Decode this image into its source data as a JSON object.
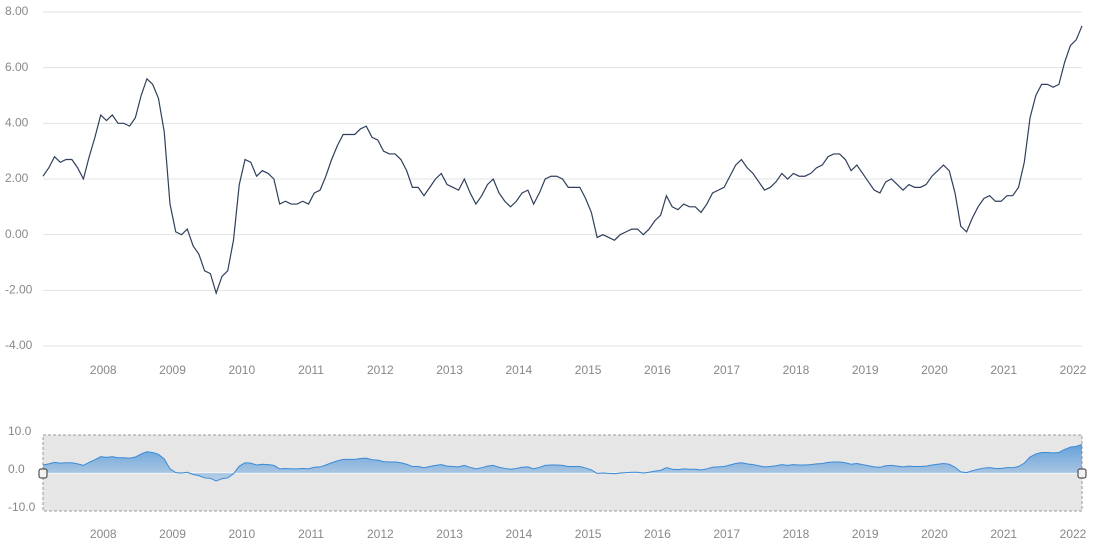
{
  "chart_data": {
    "type": "line",
    "color": "#2f3f5c",
    "categories": [
      null,
      null,
      null,
      null,
      null,
      null,
      null,
      null,
      null,
      null,
      null,
      null,
      "2008",
      null,
      null,
      null,
      null,
      null,
      null,
      null,
      null,
      null,
      null,
      null,
      "2009",
      null,
      null,
      null,
      null,
      null,
      null,
      null,
      null,
      null,
      null,
      null,
      "2010",
      null,
      null,
      null,
      null,
      null,
      null,
      null,
      null,
      null,
      null,
      null,
      "2011",
      null,
      null,
      null,
      null,
      null,
      null,
      null,
      null,
      null,
      null,
      null,
      "2012",
      null,
      null,
      null,
      null,
      null,
      null,
      null,
      null,
      null,
      null,
      null,
      "2013",
      null,
      null,
      null,
      null,
      null,
      null,
      null,
      null,
      null,
      null,
      null,
      "2014",
      null,
      null,
      null,
      null,
      null,
      null,
      null,
      null,
      null,
      null,
      null,
      "2015",
      null,
      null,
      null,
      null,
      null,
      null,
      null,
      null,
      null,
      null,
      null,
      "2016",
      null,
      null,
      null,
      null,
      null,
      null,
      null,
      null,
      null,
      null,
      null,
      "2017",
      null,
      null,
      null,
      null,
      null,
      null,
      null,
      null,
      null,
      null,
      null,
      "2018",
      null,
      null,
      null,
      null,
      null,
      null,
      null,
      null,
      null,
      null,
      null,
      "2019",
      null,
      null,
      null,
      null,
      null,
      null,
      null,
      null,
      null,
      null,
      null,
      "2020",
      null,
      null,
      null,
      null,
      null,
      null,
      null,
      null,
      null,
      null,
      null,
      "2021",
      null,
      null,
      null,
      null,
      null,
      null,
      null,
      null,
      null,
      null,
      null,
      "2022"
    ],
    "values": [
      2.1,
      2.4,
      2.8,
      2.6,
      2.7,
      2.7,
      2.4,
      2.0,
      2.8,
      3.5,
      4.3,
      4.1,
      4.3,
      4.0,
      4.0,
      3.9,
      4.2,
      5.0,
      5.6,
      5.4,
      4.9,
      3.7,
      1.1,
      0.1,
      0.0,
      0.2,
      -0.4,
      -0.7,
      -1.3,
      -1.4,
      -2.1,
      -1.5,
      -1.3,
      -0.2,
      1.8,
      2.7,
      2.6,
      2.1,
      2.3,
      2.2,
      2.0,
      1.1,
      1.2,
      1.1,
      1.1,
      1.2,
      1.1,
      1.5,
      1.6,
      2.1,
      2.7,
      3.2,
      3.6,
      3.6,
      3.6,
      3.8,
      3.9,
      3.5,
      3.4,
      3.0,
      2.9,
      2.9,
      2.7,
      2.3,
      1.7,
      1.7,
      1.4,
      1.7,
      2.0,
      2.2,
      1.8,
      1.7,
      1.6,
      2.0,
      1.5,
      1.1,
      1.4,
      1.8,
      2.0,
      1.5,
      1.2,
      1.0,
      1.2,
      1.5,
      1.6,
      1.1,
      1.5,
      2.0,
      2.1,
      2.1,
      2.0,
      1.7,
      1.7,
      1.7,
      1.3,
      0.8,
      -0.1,
      0.0,
      -0.1,
      -0.2,
      0.0,
      0.1,
      0.2,
      0.2,
      0.0,
      0.2,
      0.5,
      0.7,
      1.4,
      1.0,
      0.9,
      1.1,
      1.0,
      1.0,
      0.8,
      1.1,
      1.5,
      1.6,
      1.7,
      2.1,
      2.5,
      2.7,
      2.4,
      2.2,
      1.9,
      1.6,
      1.7,
      1.9,
      2.2,
      2.0,
      2.2,
      2.1,
      2.1,
      2.2,
      2.4,
      2.5,
      2.8,
      2.9,
      2.9,
      2.7,
      2.3,
      2.5,
      2.2,
      1.9,
      1.6,
      1.5,
      1.9,
      2.0,
      1.8,
      1.6,
      1.8,
      1.7,
      1.7,
      1.8,
      2.1,
      2.3,
      2.5,
      2.3,
      1.5,
      0.3,
      0.1,
      0.6,
      1.0,
      1.3,
      1.4,
      1.2,
      1.2,
      1.4,
      1.4,
      1.7,
      2.6,
      4.2,
      5.0,
      5.4,
      5.4,
      5.3,
      5.4,
      6.2,
      6.8,
      7.0,
      7.5
    ],
    "ylim": [
      -4,
      8
    ],
    "yticks": [
      {
        "value": 8,
        "label": "8.00"
      },
      {
        "value": 6,
        "label": "6.00"
      },
      {
        "value": 4,
        "label": "4.00"
      },
      {
        "value": 2,
        "label": "2.00"
      },
      {
        "value": 0,
        "label": "0.00"
      },
      {
        "value": -2,
        "label": "-2.00"
      },
      {
        "value": -4,
        "label": "-4.00"
      }
    ],
    "grid": true,
    "navigator": {
      "color": "#3a8ad8",
      "ylim": [
        -10,
        10
      ],
      "yticks": [
        {
          "value": 10,
          "label": "10.0"
        },
        {
          "value": 0,
          "label": "0.0"
        },
        {
          "value": -10,
          "label": "-10.0"
        }
      ]
    }
  }
}
